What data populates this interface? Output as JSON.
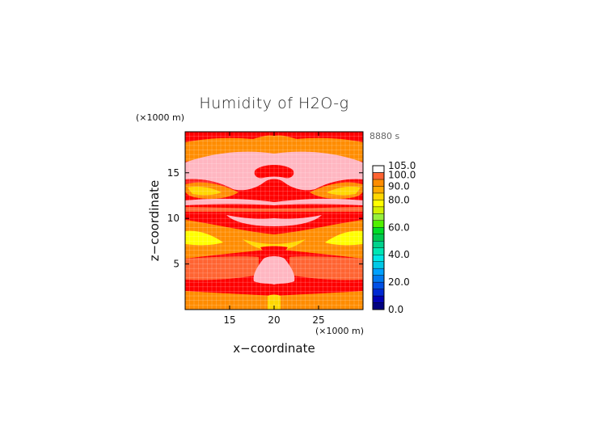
{
  "chart_data": {
    "type": "heatmap",
    "title": "Humidity of H2O-g",
    "xlabel": "x−coordinate",
    "ylabel": "z−coordinate",
    "x_unit": "(×1000 m)",
    "z_unit": "(×1000 m)",
    "time_label": "8880 s",
    "xlim": [
      10,
      30
    ],
    "ylim": [
      0,
      19.5
    ],
    "x_ticks": [
      15,
      20,
      25
    ],
    "y_ticks": [
      5,
      10,
      15
    ],
    "colorbar": {
      "levels": [
        0,
        5,
        10,
        15,
        20,
        25,
        30,
        35,
        40,
        45,
        50,
        55,
        60,
        65,
        70,
        75,
        80,
        85,
        90,
        95,
        100,
        105
      ],
      "colors": [
        "#000080",
        "#0000b4",
        "#0028d2",
        "#0050e6",
        "#0078f0",
        "#00a0ff",
        "#00c8e6",
        "#00e6e6",
        "#00e6b4",
        "#00d28c",
        "#00c850",
        "#00dc28",
        "#50f000",
        "#96f03c",
        "#d2f000",
        "#ffff00",
        "#ffd700",
        "#ffaa00",
        "#ff8c00",
        "#ff6432",
        "#ff0000",
        "#ffffff"
      ],
      "labeled_levels": [
        0.0,
        20.0,
        40.0,
        60.0,
        80.0,
        90.0,
        100.0,
        105.0
      ],
      "labels": [
        "0.0",
        "20.0",
        "40.0",
        "60.0",
        "80.0",
        "90.0",
        "100.0",
        "105.0"
      ]
    },
    "grid": true
  }
}
